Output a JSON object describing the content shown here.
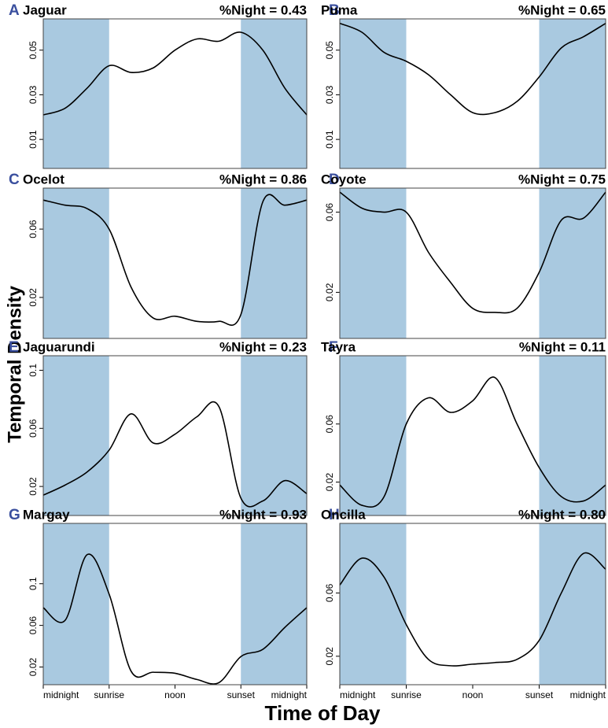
{
  "ylabel": "Temporal Density",
  "xlabel": "Time of Day",
  "chart_data": [
    {
      "type": "line",
      "panel_label": "A",
      "title": "Jaguar",
      "annotation": "%Night = 0.43",
      "xlim": [
        0,
        24
      ],
      "ylim": [
        -0.003,
        0.064
      ],
      "yticks": [
        0.01,
        0.03,
        0.05
      ],
      "night": [
        [
          0,
          6
        ],
        [
          18,
          24
        ]
      ],
      "shade_color": "#a9c9e0",
      "x": [
        0,
        2,
        4,
        6,
        8,
        10,
        12,
        14,
        16,
        18,
        20,
        22,
        24
      ],
      "series": [
        {
          "color": "#000000",
          "values": [
            0.021,
            0.024,
            0.033,
            0.043,
            0.04,
            0.042,
            0.05,
            0.055,
            0.054,
            0.058,
            0.05,
            0.033,
            0.021
          ]
        }
      ]
    },
    {
      "type": "line",
      "panel_label": "B",
      "title": "Puma",
      "annotation": "%Night = 0.65",
      "xlim": [
        0,
        24
      ],
      "ylim": [
        -0.003,
        0.064
      ],
      "yticks": [
        0.01,
        0.03,
        0.05
      ],
      "night": [
        [
          0,
          6
        ],
        [
          18,
          24
        ]
      ],
      "shade_color": "#a9c9e0",
      "x": [
        0,
        2,
        4,
        6,
        8,
        10,
        12,
        14,
        16,
        18,
        20,
        22,
        24
      ],
      "series": [
        {
          "color": "#000000",
          "values": [
            0.062,
            0.058,
            0.049,
            0.045,
            0.039,
            0.03,
            0.022,
            0.022,
            0.027,
            0.038,
            0.051,
            0.056,
            0.062
          ]
        }
      ]
    },
    {
      "type": "line",
      "panel_label": "C",
      "title": "Ocelot",
      "annotation": "%Night = 0.86",
      "xlim": [
        0,
        24
      ],
      "ylim": [
        -0.004,
        0.084
      ],
      "yticks": [
        0.02,
        0.06
      ],
      "night": [
        [
          0,
          6
        ],
        [
          18,
          24
        ]
      ],
      "shade_color": "#a9c9e0",
      "x": [
        0,
        2,
        4,
        6,
        8,
        10,
        12,
        14,
        16,
        18,
        20,
        22,
        24
      ],
      "series": [
        {
          "color": "#000000",
          "values": [
            0.077,
            0.074,
            0.072,
            0.06,
            0.026,
            0.008,
            0.009,
            0.006,
            0.006,
            0.01,
            0.076,
            0.074,
            0.077
          ]
        }
      ]
    },
    {
      "type": "line",
      "panel_label": "D",
      "title": "Coyote",
      "annotation": "%Night = 0.75",
      "xlim": [
        0,
        24
      ],
      "ylim": [
        -0.003,
        0.072
      ],
      "yticks": [
        0.02,
        0.06
      ],
      "night": [
        [
          0,
          6
        ],
        [
          18,
          24
        ]
      ],
      "shade_color": "#a9c9e0",
      "x": [
        0,
        2,
        4,
        6,
        8,
        10,
        12,
        14,
        16,
        18,
        20,
        22,
        24
      ],
      "series": [
        {
          "color": "#000000",
          "values": [
            0.07,
            0.062,
            0.06,
            0.06,
            0.04,
            0.025,
            0.012,
            0.01,
            0.012,
            0.03,
            0.056,
            0.057,
            0.07
          ]
        }
      ]
    },
    {
      "type": "line",
      "panel_label": "E",
      "title": "Jaguarundi",
      "annotation": "%Night = 0.23",
      "xlim": [
        0,
        24
      ],
      "ylim": [
        0,
        0.11
      ],
      "yticks": [
        0.02,
        0.06,
        0.1
      ],
      "night": [
        [
          0,
          6
        ],
        [
          18,
          24
        ]
      ],
      "shade_color": "#a9c9e0",
      "x": [
        0,
        2,
        4,
        6,
        8,
        10,
        12,
        14,
        16,
        18,
        20,
        22,
        24
      ],
      "series": [
        {
          "color": "#000000",
          "values": [
            0.014,
            0.021,
            0.03,
            0.045,
            0.07,
            0.05,
            0.056,
            0.068,
            0.075,
            0.012,
            0.01,
            0.024,
            0.015
          ]
        }
      ]
    },
    {
      "type": "line",
      "panel_label": "F",
      "title": "Tayra",
      "annotation": "%Night = 0.11",
      "xlim": [
        0,
        24
      ],
      "ylim": [
        -0.003,
        0.107
      ],
      "yticks": [
        0.02,
        0.06
      ],
      "night": [
        [
          0,
          6
        ],
        [
          18,
          24
        ]
      ],
      "shade_color": "#a9c9e0",
      "x": [
        0,
        2,
        4,
        6,
        8,
        10,
        12,
        14,
        16,
        18,
        20,
        22,
        24
      ],
      "series": [
        {
          "color": "#000000",
          "values": [
            0.018,
            0.004,
            0.01,
            0.06,
            0.078,
            0.068,
            0.076,
            0.092,
            0.06,
            0.03,
            0.01,
            0.007,
            0.018
          ]
        }
      ]
    },
    {
      "type": "line",
      "panel_label": "G",
      "title": "Margay",
      "annotation": "%Night = 0.93",
      "xlim": [
        0,
        24
      ],
      "ylim": [
        0.003,
        0.158
      ],
      "yticks": [
        0.02,
        0.06,
        0.1
      ],
      "night": [
        [
          0,
          6
        ],
        [
          18,
          24
        ]
      ],
      "shade_color": "#a9c9e0",
      "xticks": [
        {
          "value": 0,
          "label": "midnight"
        },
        {
          "value": 6,
          "label": "sunrise"
        },
        {
          "value": 12,
          "label": "noon"
        },
        {
          "value": 18,
          "label": "sunset"
        },
        {
          "value": 24,
          "label": "midnight"
        }
      ],
      "x": [
        0,
        2,
        4,
        6,
        8,
        10,
        12,
        14,
        16,
        18,
        20,
        22,
        24
      ],
      "series": [
        {
          "color": "#000000",
          "values": [
            0.077,
            0.065,
            0.128,
            0.09,
            0.016,
            0.015,
            0.014,
            0.008,
            0.005,
            0.03,
            0.037,
            0.058,
            0.077
          ]
        }
      ]
    },
    {
      "type": "line",
      "panel_label": "H",
      "title": "Oncilla",
      "annotation": "%Night = 0.80",
      "xlim": [
        0,
        24
      ],
      "ylim": [
        0.002,
        0.104
      ],
      "yticks": [
        0.02,
        0.06
      ],
      "night": [
        [
          0,
          6
        ],
        [
          18,
          24
        ]
      ],
      "shade_color": "#a9c9e0",
      "xticks": [
        {
          "value": 0,
          "label": "midnight"
        },
        {
          "value": 6,
          "label": "sunrise"
        },
        {
          "value": 12,
          "label": "noon"
        },
        {
          "value": 18,
          "label": "sunset"
        },
        {
          "value": 24,
          "label": "midnight"
        }
      ],
      "x": [
        0,
        2,
        4,
        6,
        8,
        10,
        12,
        14,
        16,
        18,
        20,
        22,
        24
      ],
      "series": [
        {
          "color": "#000000",
          "values": [
            0.065,
            0.082,
            0.07,
            0.04,
            0.018,
            0.014,
            0.015,
            0.016,
            0.018,
            0.03,
            0.06,
            0.085,
            0.075
          ]
        }
      ]
    }
  ]
}
